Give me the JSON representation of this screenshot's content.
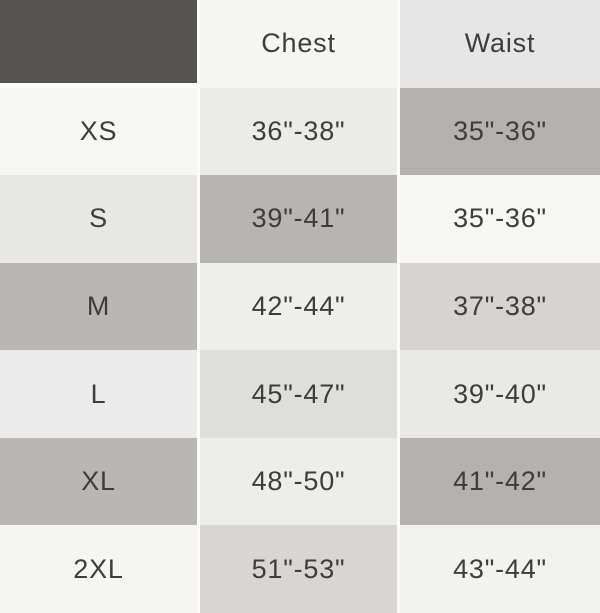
{
  "size_chart": {
    "columns": [
      {
        "label": ""
      },
      {
        "label": "Chest"
      },
      {
        "label": "Waist"
      }
    ],
    "rows": [
      {
        "size": "XS",
        "chest": "36\"-38\"",
        "waist": "35\"-36\""
      },
      {
        "size": "S",
        "chest": "39\"-41\"",
        "waist": "35\"-36\""
      },
      {
        "size": "M",
        "chest": "42\"-44\"",
        "waist": "37\"-38\""
      },
      {
        "size": "L",
        "chest": "45\"-47\"",
        "waist": "39\"-40\""
      },
      {
        "size": "XL",
        "chest": "48\"-50\"",
        "waist": "41\"-42\""
      },
      {
        "size": "2XL",
        "chest": "51\"-53\"",
        "waist": "43\"-44\""
      }
    ]
  },
  "chart_data": {
    "type": "table",
    "title": "",
    "columns": [
      "",
      "Chest",
      "Waist"
    ],
    "rows": [
      [
        "XS",
        "36\"-38\"",
        "35\"-36\""
      ],
      [
        "S",
        "39\"-41\"",
        "35\"-36\""
      ],
      [
        "M",
        "42\"-44\"",
        "37\"-38\""
      ],
      [
        "L",
        "45\"-47\"",
        "39\"-40\""
      ],
      [
        "XL",
        "48\"-50\"",
        "41\"-42\""
      ],
      [
        "2XL",
        "51\"-53\"",
        "43\"-44\""
      ]
    ],
    "legend": "none",
    "grid": "off"
  },
  "colors": {
    "header_dark": "#575352",
    "text": "#3f3d3c",
    "separator": "#fbfbfb",
    "cell_backgrounds": [
      [
        "#575352",
        "#f5f5f4",
        "#e7e6e6"
      ],
      [
        "#f6f6f5",
        "#ebebea",
        "#b3b2b1"
      ],
      [
        "#e7e7e6",
        "#b6b5b4",
        "#f6f6f5"
      ],
      [
        "#b8b7b6",
        "#eeeeed",
        "#d5d4d3"
      ],
      [
        "#ecebeb",
        "#dededd",
        "#e9e9e8"
      ],
      [
        "#b8b7b6",
        "#ededec",
        "#b3b2b1"
      ],
      [
        "#f5f5f4",
        "#d7d6d5",
        "#f2f2f1"
      ]
    ]
  }
}
